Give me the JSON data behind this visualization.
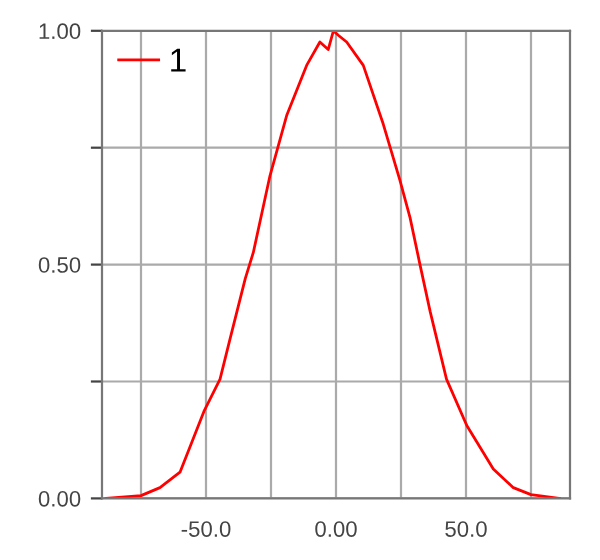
{
  "chart_data": {
    "type": "line",
    "x": [
      -88.5,
      -75,
      -67.7,
      -60,
      -50.8,
      -44.6,
      -40.8,
      -34.9,
      -31.8,
      -25.4,
      -18.9,
      -11.3,
      -6.2,
      -3,
      -1,
      1,
      4.1,
      10.5,
      18.2,
      24.6,
      28.5,
      32.3,
      36.2,
      42.5,
      50.3,
      60.5,
      68.2,
      75,
      86
    ],
    "series": [
      {
        "name": "1",
        "color": "#ff0000",
        "values": [
          0,
          0.006,
          0.023,
          0.056,
          0.186,
          0.255,
          0.34,
          0.47,
          0.526,
          0.69,
          0.82,
          0.926,
          0.976,
          0.96,
          1.0,
          0.99,
          0.976,
          0.926,
          0.8,
          0.68,
          0.6,
          0.5,
          0.4,
          0.255,
          0.156,
          0.063,
          0.023,
          0.008,
          0
        ]
      }
    ],
    "xlim": [
      -90,
      90
    ],
    "xticks": [
      {
        "value": -75,
        "label": null
      },
      {
        "value": -50,
        "label": "-50.0"
      },
      {
        "value": -25,
        "label": null
      },
      {
        "value": 0,
        "label": "0.00"
      },
      {
        "value": 25,
        "label": null
      },
      {
        "value": 50,
        "label": "50.0"
      },
      {
        "value": 75,
        "label": null
      }
    ],
    "ylim": [
      0,
      1
    ],
    "yticks": [
      {
        "value": 0,
        "label": "0.00"
      },
      {
        "value": 0.25,
        "label": null
      },
      {
        "value": 0.5,
        "label": "0.50"
      },
      {
        "value": 0.75,
        "label": null
      },
      {
        "value": 1,
        "label": "1.00"
      }
    ],
    "grid": true,
    "legend": "top left",
    "marker": "none",
    "line_style": "solid"
  }
}
